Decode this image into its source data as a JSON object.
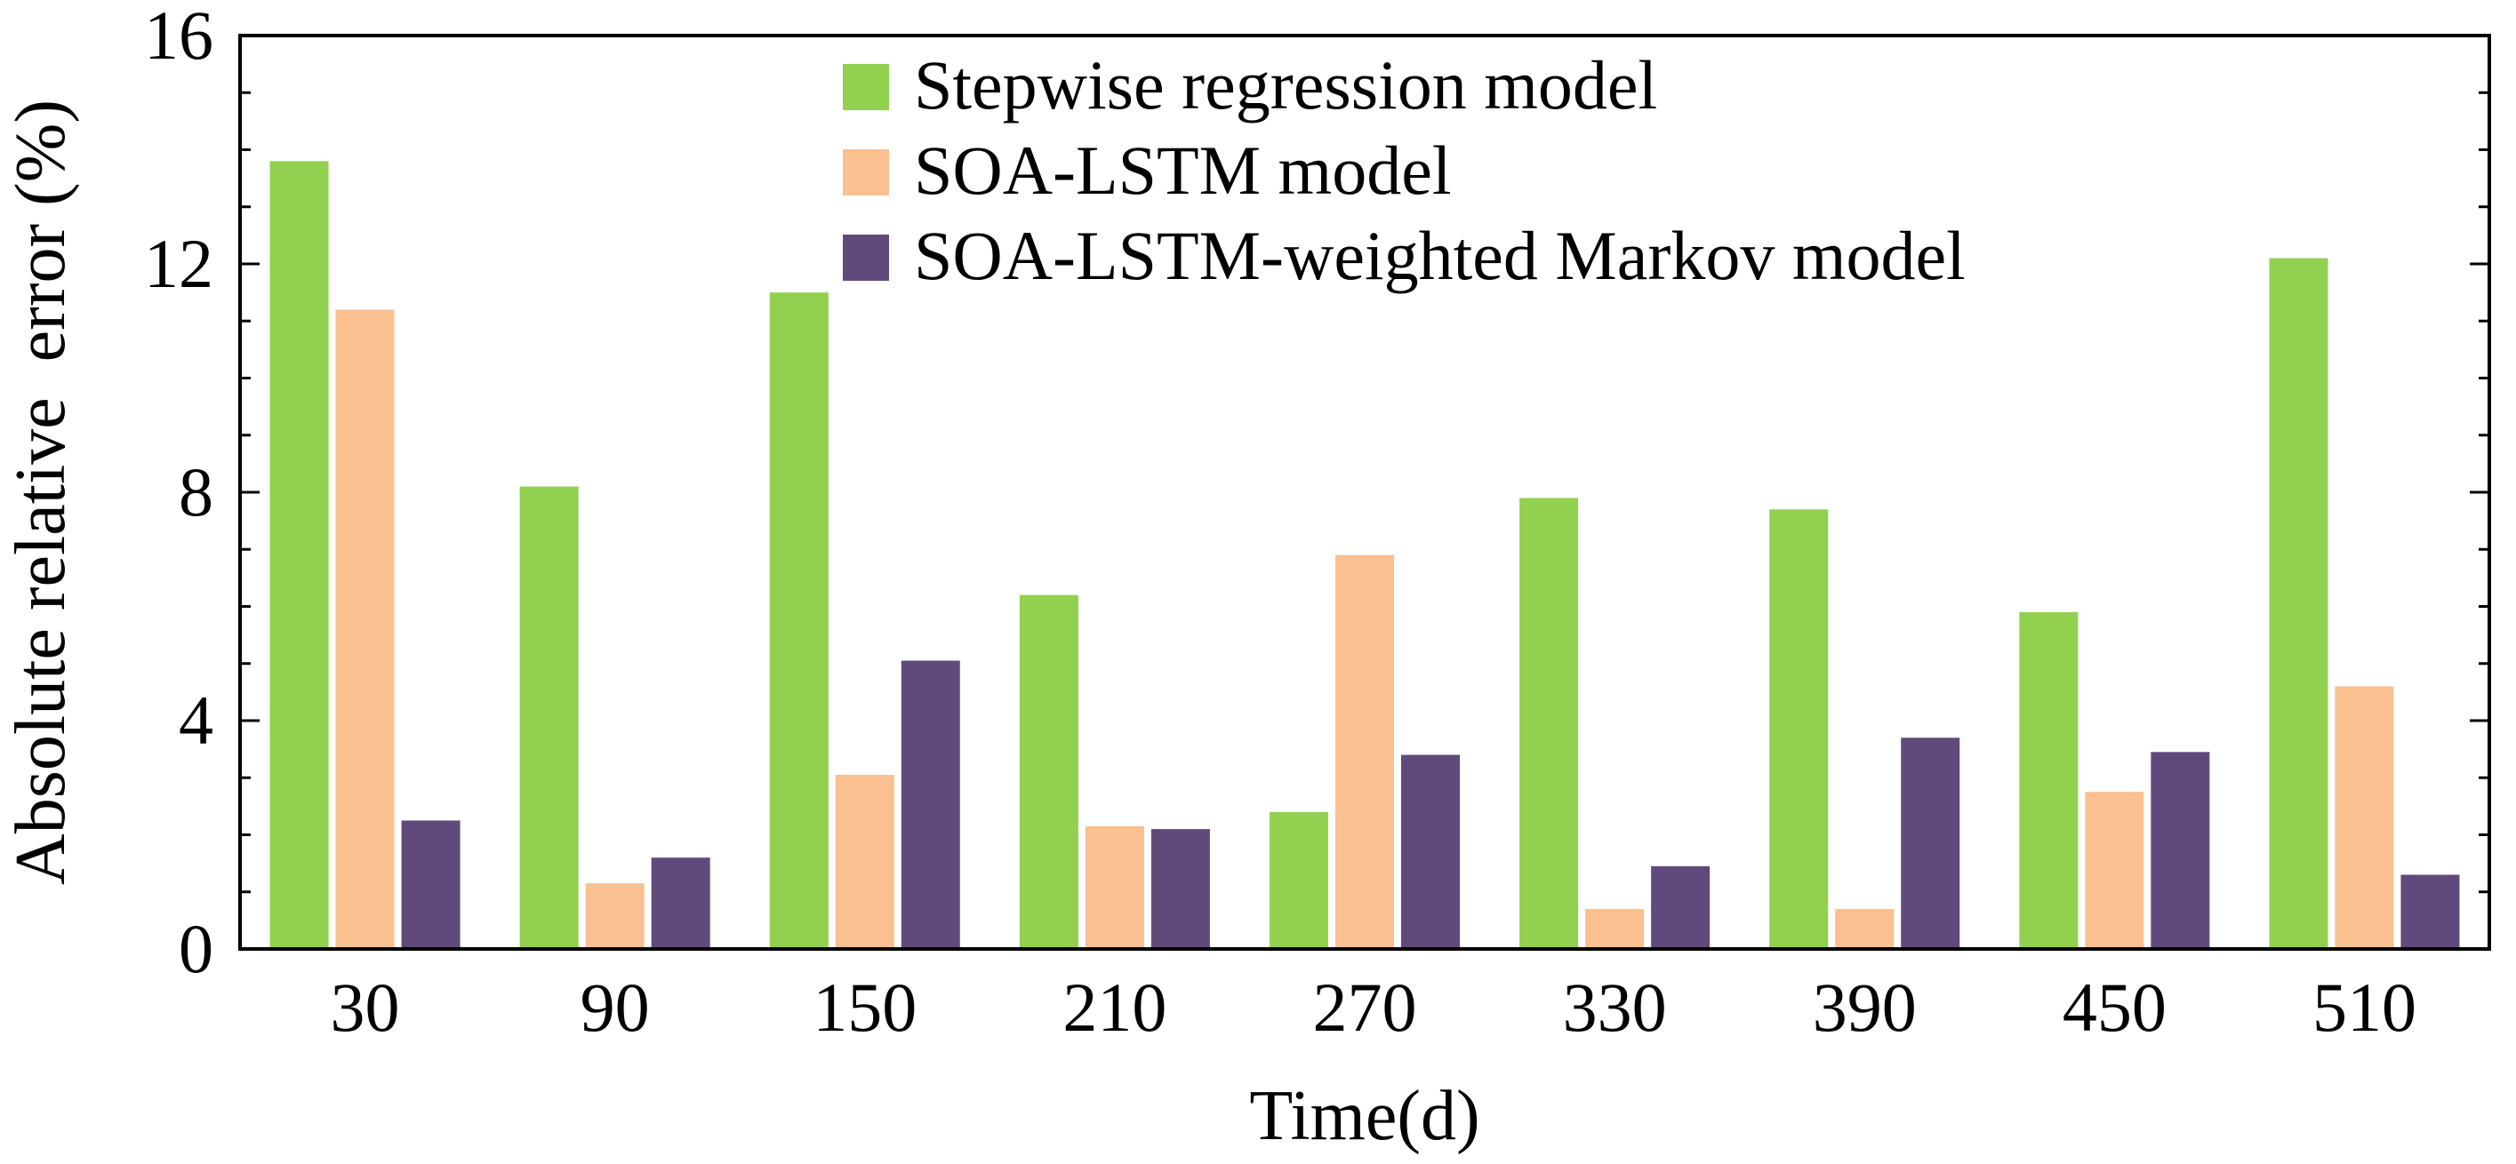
{
  "chart_data": {
    "type": "bar",
    "title": "",
    "xlabel": "Time(d)",
    "ylabel": "Absolute relative  error (%)",
    "categories": [
      "30",
      "90",
      "150",
      "210",
      "270",
      "330",
      "390",
      "450",
      "510"
    ],
    "ylim": [
      0,
      16
    ],
    "yticks": [
      0,
      4,
      8,
      12,
      16
    ],
    "grid": false,
    "legend_position": "top-center",
    "series": [
      {
        "name": "Stepwise regression model",
        "color": "#92d050",
        "values": [
          13.8,
          8.1,
          11.5,
          6.2,
          2.4,
          7.9,
          7.7,
          5.9,
          12.1
        ]
      },
      {
        "name": "SOA-LSTM model",
        "color": "#fac090",
        "values": [
          11.2,
          1.15,
          3.05,
          2.15,
          6.9,
          0.7,
          0.7,
          2.75,
          4.6
        ]
      },
      {
        "name": "SOA-LSTM-weighted Markov model",
        "color": "#604a7b",
        "values": [
          2.25,
          1.6,
          5.05,
          2.1,
          3.4,
          1.45,
          3.7,
          3.45,
          1.3
        ]
      }
    ]
  }
}
